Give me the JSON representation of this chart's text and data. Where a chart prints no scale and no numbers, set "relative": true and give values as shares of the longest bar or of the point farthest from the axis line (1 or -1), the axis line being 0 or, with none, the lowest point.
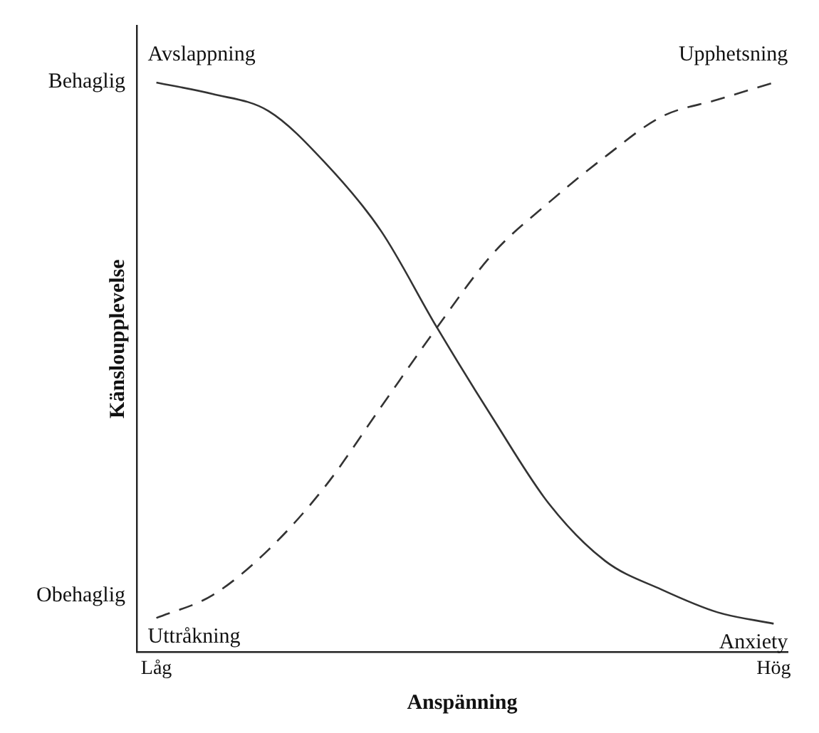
{
  "chart_data": {
    "type": "line",
    "relative": true,
    "xlabel": "Anspänning",
    "ylabel": "Känsloupplevelse",
    "categories": [
      "Låg",
      null,
      null,
      null,
      null,
      null,
      null,
      null,
      null,
      null,
      null,
      "Hög"
    ],
    "grid": false,
    "legend": false,
    "marker": "none",
    "series": [
      {
        "color": "#333333",
        "line_style": "solid",
        "values": [
          1.0,
          0.98,
          0.95,
          0.86,
          0.74,
          0.57,
          0.41,
          0.26,
          0.16,
          0.11,
          0.07,
          0.05
        ]
      },
      {
        "color": "#333333",
        "line_style": "dashed",
        "values": [
          0.06,
          0.1,
          0.18,
          0.29,
          0.43,
          0.57,
          0.7,
          0.79,
          0.87,
          0.94,
          0.97,
          1.0
        ]
      }
    ],
    "annotations": [
      "Behaglig",
      "Obehaglig",
      {
        "text": "Avslappning",
        "x": "Låg",
        "y": 1.0
      },
      {
        "text": "Upphetsning",
        "x": "Hög",
        "y": 1.0
      },
      {
        "text": "Uttråkning",
        "x": "Låg",
        "y": 0.06
      },
      {
        "text": "Anxiety",
        "x": "Hög",
        "y": 0.05
      }
    ]
  }
}
